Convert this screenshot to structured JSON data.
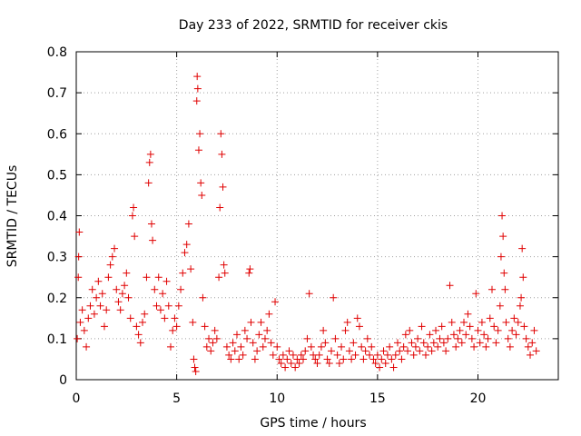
{
  "chart_data": {
    "type": "scatter",
    "title": "Day 233 of 2022, SRMTID for receiver ckis",
    "xlabel": "GPS time / hours",
    "ylabel": "SRMTID / TECUs",
    "xlim": [
      0,
      24
    ],
    "ylim": [
      0,
      0.8
    ],
    "xticks": [
      0,
      5,
      10,
      15,
      20
    ],
    "xtick_labels": [
      "0",
      "5",
      "10",
      "15",
      "20"
    ],
    "yticks": [
      0,
      0.1,
      0.2,
      0.3,
      0.4,
      0.5,
      0.6,
      0.7,
      0.8
    ],
    "ytick_labels": [
      "0",
      "0.1",
      "0.2",
      "0.3",
      "0.4",
      "0.5",
      "0.6",
      "0.7",
      "0.8"
    ],
    "grid": true,
    "marker": "+",
    "color": "#e00000",
    "series": [
      {
        "name": "SRMTID",
        "points": [
          [
            0.05,
            0.1
          ],
          [
            0.1,
            0.25
          ],
          [
            0.12,
            0.3
          ],
          [
            0.15,
            0.36
          ],
          [
            0.2,
            0.14
          ],
          [
            0.3,
            0.17
          ],
          [
            0.4,
            0.12
          ],
          [
            0.5,
            0.08
          ],
          [
            0.6,
            0.15
          ],
          [
            0.7,
            0.18
          ],
          [
            0.8,
            0.22
          ],
          [
            0.9,
            0.16
          ],
          [
            1.0,
            0.2
          ],
          [
            1.1,
            0.24
          ],
          [
            1.2,
            0.18
          ],
          [
            1.3,
            0.21
          ],
          [
            1.4,
            0.13
          ],
          [
            1.5,
            0.17
          ],
          [
            1.6,
            0.25
          ],
          [
            1.7,
            0.28
          ],
          [
            1.8,
            0.3
          ],
          [
            1.9,
            0.32
          ],
          [
            2.0,
            0.22
          ],
          [
            2.1,
            0.19
          ],
          [
            2.2,
            0.17
          ],
          [
            2.3,
            0.21
          ],
          [
            2.4,
            0.23
          ],
          [
            2.5,
            0.26
          ],
          [
            2.6,
            0.2
          ],
          [
            2.7,
            0.15
          ],
          [
            2.8,
            0.4
          ],
          [
            2.85,
            0.42
          ],
          [
            2.9,
            0.35
          ],
          [
            3.0,
            0.13
          ],
          [
            3.1,
            0.11
          ],
          [
            3.2,
            0.09
          ],
          [
            3.3,
            0.14
          ],
          [
            3.4,
            0.16
          ],
          [
            3.5,
            0.25
          ],
          [
            3.6,
            0.48
          ],
          [
            3.65,
            0.53
          ],
          [
            3.7,
            0.55
          ],
          [
            3.75,
            0.38
          ],
          [
            3.8,
            0.34
          ],
          [
            3.9,
            0.22
          ],
          [
            4.0,
            0.18
          ],
          [
            4.1,
            0.25
          ],
          [
            4.2,
            0.17
          ],
          [
            4.3,
            0.21
          ],
          [
            4.4,
            0.15
          ],
          [
            4.5,
            0.24
          ],
          [
            4.6,
            0.18
          ],
          [
            4.7,
            0.08
          ],
          [
            4.8,
            0.12
          ],
          [
            4.9,
            0.15
          ],
          [
            5.0,
            0.13
          ],
          [
            5.1,
            0.18
          ],
          [
            5.2,
            0.22
          ],
          [
            5.3,
            0.26
          ],
          [
            5.4,
            0.31
          ],
          [
            5.5,
            0.33
          ],
          [
            5.6,
            0.38
          ],
          [
            5.7,
            0.27
          ],
          [
            5.8,
            0.14
          ],
          [
            5.85,
            0.05
          ],
          [
            5.9,
            0.03
          ],
          [
            5.95,
            0.02
          ],
          [
            6.0,
            0.68
          ],
          [
            6.02,
            0.74
          ],
          [
            6.05,
            0.71
          ],
          [
            6.1,
            0.56
          ],
          [
            6.15,
            0.6
          ],
          [
            6.2,
            0.48
          ],
          [
            6.25,
            0.45
          ],
          [
            6.3,
            0.2
          ],
          [
            6.4,
            0.13
          ],
          [
            6.5,
            0.08
          ],
          [
            6.6,
            0.1
          ],
          [
            6.7,
            0.07
          ],
          [
            6.8,
            0.09
          ],
          [
            6.9,
            0.12
          ],
          [
            7.0,
            0.1
          ],
          [
            7.1,
            0.25
          ],
          [
            7.15,
            0.42
          ],
          [
            7.2,
            0.6
          ],
          [
            7.25,
            0.55
          ],
          [
            7.3,
            0.47
          ],
          [
            7.35,
            0.28
          ],
          [
            7.4,
            0.26
          ],
          [
            7.5,
            0.08
          ],
          [
            7.6,
            0.06
          ],
          [
            7.7,
            0.05
          ],
          [
            7.8,
            0.09
          ],
          [
            7.9,
            0.07
          ],
          [
            8.0,
            0.11
          ],
          [
            8.1,
            0.05
          ],
          [
            8.2,
            0.08
          ],
          [
            8.3,
            0.06
          ],
          [
            8.4,
            0.12
          ],
          [
            8.5,
            0.1
          ],
          [
            8.6,
            0.26
          ],
          [
            8.65,
            0.27
          ],
          [
            8.7,
            0.14
          ],
          [
            8.8,
            0.09
          ],
          [
            8.9,
            0.05
          ],
          [
            9.0,
            0.07
          ],
          [
            9.1,
            0.11
          ],
          [
            9.2,
            0.14
          ],
          [
            9.3,
            0.08
          ],
          [
            9.4,
            0.1
          ],
          [
            9.5,
            0.12
          ],
          [
            9.6,
            0.16
          ],
          [
            9.7,
            0.09
          ],
          [
            9.8,
            0.06
          ],
          [
            9.9,
            0.19
          ],
          [
            10.0,
            0.08
          ],
          [
            10.1,
            0.05
          ],
          [
            10.2,
            0.04
          ],
          [
            10.3,
            0.06
          ],
          [
            10.4,
            0.03
          ],
          [
            10.5,
            0.05
          ],
          [
            10.6,
            0.07
          ],
          [
            10.7,
            0.04
          ],
          [
            10.8,
            0.06
          ],
          [
            10.9,
            0.03
          ],
          [
            11.0,
            0.05
          ],
          [
            11.1,
            0.04
          ],
          [
            11.2,
            0.06
          ],
          [
            11.3,
            0.05
          ],
          [
            11.4,
            0.07
          ],
          [
            11.5,
            0.1
          ],
          [
            11.6,
            0.21
          ],
          [
            11.7,
            0.08
          ],
          [
            11.8,
            0.06
          ],
          [
            11.9,
            0.05
          ],
          [
            12.0,
            0.04
          ],
          [
            12.1,
            0.06
          ],
          [
            12.2,
            0.08
          ],
          [
            12.3,
            0.12
          ],
          [
            12.4,
            0.09
          ],
          [
            12.5,
            0.05
          ],
          [
            12.6,
            0.04
          ],
          [
            12.7,
            0.07
          ],
          [
            12.8,
            0.2
          ],
          [
            12.9,
            0.1
          ],
          [
            13.0,
            0.06
          ],
          [
            13.1,
            0.04
          ],
          [
            13.2,
            0.08
          ],
          [
            13.3,
            0.05
          ],
          [
            13.4,
            0.12
          ],
          [
            13.5,
            0.14
          ],
          [
            13.6,
            0.07
          ],
          [
            13.7,
            0.05
          ],
          [
            13.8,
            0.09
          ],
          [
            13.9,
            0.06
          ],
          [
            14.0,
            0.15
          ],
          [
            14.1,
            0.13
          ],
          [
            14.2,
            0.08
          ],
          [
            14.3,
            0.05
          ],
          [
            14.4,
            0.07
          ],
          [
            14.5,
            0.1
          ],
          [
            14.6,
            0.06
          ],
          [
            14.7,
            0.08
          ],
          [
            14.8,
            0.05
          ],
          [
            14.9,
            0.04
          ],
          [
            15.0,
            0.06
          ],
          [
            15.1,
            0.03
          ],
          [
            15.2,
            0.05
          ],
          [
            15.3,
            0.07
          ],
          [
            15.4,
            0.04
          ],
          [
            15.5,
            0.06
          ],
          [
            15.6,
            0.08
          ],
          [
            15.7,
            0.05
          ],
          [
            15.8,
            0.03
          ],
          [
            15.9,
            0.06
          ],
          [
            16.0,
            0.09
          ],
          [
            16.1,
            0.07
          ],
          [
            16.2,
            0.05
          ],
          [
            16.3,
            0.08
          ],
          [
            16.4,
            0.11
          ],
          [
            16.5,
            0.07
          ],
          [
            16.6,
            0.12
          ],
          [
            16.7,
            0.09
          ],
          [
            16.8,
            0.06
          ],
          [
            16.9,
            0.08
          ],
          [
            17.0,
            0.1
          ],
          [
            17.1,
            0.07
          ],
          [
            17.2,
            0.13
          ],
          [
            17.3,
            0.09
          ],
          [
            17.4,
            0.06
          ],
          [
            17.5,
            0.08
          ],
          [
            17.6,
            0.11
          ],
          [
            17.7,
            0.07
          ],
          [
            17.8,
            0.09
          ],
          [
            17.9,
            0.12
          ],
          [
            18.0,
            0.08
          ],
          [
            18.1,
            0.1
          ],
          [
            18.2,
            0.13
          ],
          [
            18.3,
            0.09
          ],
          [
            18.4,
            0.07
          ],
          [
            18.5,
            0.1
          ],
          [
            18.6,
            0.23
          ],
          [
            18.7,
            0.14
          ],
          [
            18.8,
            0.11
          ],
          [
            18.9,
            0.08
          ],
          [
            19.0,
            0.1
          ],
          [
            19.1,
            0.12
          ],
          [
            19.2,
            0.09
          ],
          [
            19.3,
            0.14
          ],
          [
            19.4,
            0.11
          ],
          [
            19.5,
            0.16
          ],
          [
            19.6,
            0.13
          ],
          [
            19.7,
            0.1
          ],
          [
            19.8,
            0.08
          ],
          [
            19.9,
            0.21
          ],
          [
            20.0,
            0.12
          ],
          [
            20.1,
            0.09
          ],
          [
            20.2,
            0.14
          ],
          [
            20.3,
            0.11
          ],
          [
            20.4,
            0.08
          ],
          [
            20.5,
            0.1
          ],
          [
            20.6,
            0.15
          ],
          [
            20.7,
            0.22
          ],
          [
            20.8,
            0.13
          ],
          [
            20.9,
            0.09
          ],
          [
            21.0,
            0.12
          ],
          [
            21.1,
            0.18
          ],
          [
            21.15,
            0.3
          ],
          [
            21.2,
            0.4
          ],
          [
            21.25,
            0.35
          ],
          [
            21.3,
            0.26
          ],
          [
            21.35,
            0.22
          ],
          [
            21.4,
            0.14
          ],
          [
            21.5,
            0.1
          ],
          [
            21.6,
            0.08
          ],
          [
            21.7,
            0.12
          ],
          [
            21.8,
            0.15
          ],
          [
            21.9,
            0.11
          ],
          [
            22.0,
            0.14
          ],
          [
            22.1,
            0.18
          ],
          [
            22.15,
            0.2
          ],
          [
            22.2,
            0.32
          ],
          [
            22.25,
            0.25
          ],
          [
            22.3,
            0.13
          ],
          [
            22.4,
            0.1
          ],
          [
            22.5,
            0.08
          ],
          [
            22.6,
            0.06
          ],
          [
            22.7,
            0.09
          ],
          [
            22.8,
            0.12
          ],
          [
            22.9,
            0.07
          ]
        ]
      }
    ]
  }
}
